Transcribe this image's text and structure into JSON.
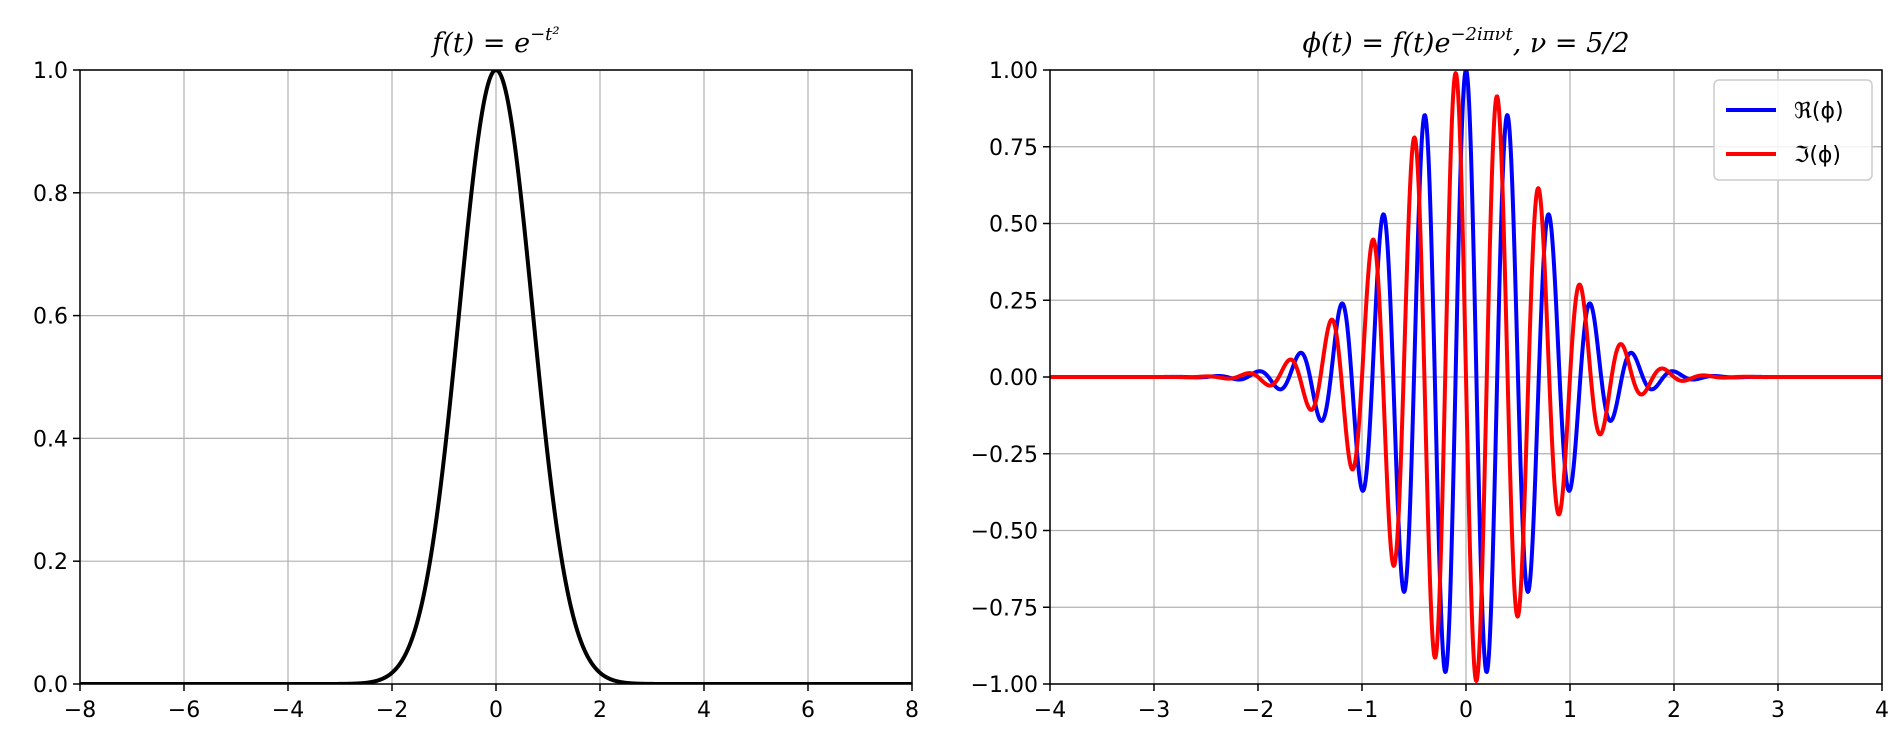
{
  "chart_data": [
    {
      "type": "line",
      "title": "f(t) = e^{-t^2}",
      "title_base": "f(t) = e",
      "title_sup": "−t²",
      "xlabel": "",
      "ylabel": "",
      "xlim": [
        -8,
        8
      ],
      "ylim": [
        0,
        1.0
      ],
      "xticks": [
        -8,
        -6,
        -4,
        -2,
        0,
        2,
        4,
        6,
        8
      ],
      "xtick_labels": [
        "−8",
        "−6",
        "−4",
        "−2",
        "0",
        "2",
        "4",
        "6",
        "8"
      ],
      "yticks": [
        0,
        0.2,
        0.4,
        0.6,
        0.8,
        1.0
      ],
      "ytick_labels": [
        "0.0",
        "0.2",
        "0.4",
        "0.6",
        "0.8",
        "1.0"
      ],
      "grid": true,
      "legend": null,
      "series": [
        {
          "color": "#000000",
          "expression": "exp(-t^2)",
          "x": [
            -8,
            -3,
            -2.5,
            -2.25,
            -2,
            -1.75,
            -1.5,
            -1.25,
            -1,
            -0.75,
            -0.5,
            -0.25,
            0,
            0.25,
            0.5,
            0.75,
            1,
            1.25,
            1.5,
            1.75,
            2,
            2.25,
            2.5,
            3,
            8
          ],
          "y": [
            0,
            0.0001,
            0.0019,
            0.0063,
            0.0183,
            0.0468,
            0.1054,
            0.2096,
            0.3679,
            0.5698,
            0.7788,
            0.9394,
            1.0,
            0.9394,
            0.7788,
            0.5698,
            0.3679,
            0.2096,
            0.1054,
            0.0468,
            0.0183,
            0.0063,
            0.0019,
            0.0001,
            0
          ]
        }
      ]
    },
    {
      "type": "line",
      "title": "ϕ(t) = f(t)e^{-2iπνt}, ν = 5/2",
      "title_base": "ϕ(t) = f(t)e",
      "title_sup": "−2iπνt",
      "title_tail": ", ν = 5/2",
      "xlabel": "",
      "ylabel": "",
      "xlim": [
        -4,
        4
      ],
      "ylim": [
        -1.0,
        1.0
      ],
      "xticks": [
        -4,
        -3,
        -2,
        -1,
        0,
        1,
        2,
        3,
        4
      ],
      "xtick_labels": [
        "−4",
        "−3",
        "−2",
        "−1",
        "0",
        "1",
        "2",
        "3",
        "4"
      ],
      "yticks": [
        -1.0,
        -0.75,
        -0.5,
        -0.25,
        0,
        0.25,
        0.5,
        0.75,
        1.0
      ],
      "ytick_labels": [
        "−1.00",
        "−0.75",
        "−0.50",
        "−0.25",
        "0.00",
        "0.25",
        "0.50",
        "0.75",
        "1.00"
      ],
      "grid": true,
      "legend": "top-right",
      "series": [
        {
          "name": "ℜ(ϕ)",
          "color": "#0000ff",
          "expression": "exp(-t^2)*cos(5πt)",
          "peaks": [
            {
              "x": -1.2,
              "y": 0.24
            },
            {
              "x": -1.0,
              "y": -0.37
            },
            {
              "x": -0.8,
              "y": 0.53
            },
            {
              "x": -0.6,
              "y": -0.7
            },
            {
              "x": -0.4,
              "y": 0.85
            },
            {
              "x": -0.2,
              "y": -0.96
            },
            {
              "x": 0.0,
              "y": 1.0
            },
            {
              "x": 0.2,
              "y": -0.96
            },
            {
              "x": 0.4,
              "y": 0.85
            },
            {
              "x": 0.6,
              "y": -0.7
            },
            {
              "x": 0.8,
              "y": 0.53
            },
            {
              "x": 1.0,
              "y": -0.37
            },
            {
              "x": 1.2,
              "y": 0.24
            }
          ]
        },
        {
          "name": "ℑ(ϕ)",
          "color": "#ff0000",
          "expression": "-exp(-t^2)*sin(5πt)",
          "peaks": [
            {
              "x": -1.1,
              "y": -0.3
            },
            {
              "x": -0.9,
              "y": 0.45
            },
            {
              "x": -0.7,
              "y": -0.61
            },
            {
              "x": -0.5,
              "y": 0.78
            },
            {
              "x": -0.3,
              "y": -0.91
            },
            {
              "x": -0.1,
              "y": 0.99
            },
            {
              "x": 0.1,
              "y": -0.99
            },
            {
              "x": 0.3,
              "y": 0.91
            },
            {
              "x": 0.5,
              "y": -0.78
            },
            {
              "x": 0.7,
              "y": 0.61
            },
            {
              "x": 0.9,
              "y": -0.45
            },
            {
              "x": 1.1,
              "y": 0.3
            }
          ]
        }
      ]
    }
  ]
}
